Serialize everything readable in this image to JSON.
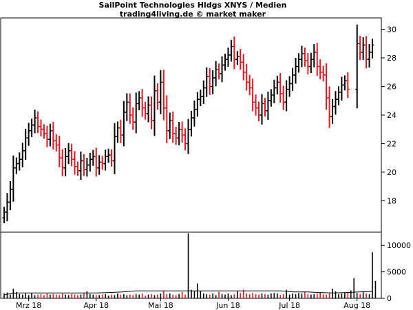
{
  "header": {
    "title": "SailPoint Technologies Hldgs XNYS / Medien",
    "subtitle": "trading4living.de © market maker"
  },
  "chart_data": {
    "type": "ohlc-bar",
    "colors": {
      "up": "#000000",
      "down": "#e8141e",
      "axis": "#000000",
      "avg": "#000000"
    },
    "price_axis": {
      "ylim": [
        15.8,
        30.8
      ],
      "ticks": [
        18,
        20,
        22,
        24,
        26,
        28,
        30
      ]
    },
    "volume_axis": {
      "ylim": [
        0,
        12500
      ],
      "ticks": [
        0,
        5000,
        10000
      ]
    },
    "x_labels": [
      "Mrz 18",
      "Apr 18",
      "Mai 18",
      "Jun 18",
      "Jul 18",
      "Aug 18"
    ],
    "x_label_index": [
      8,
      30,
      51,
      73,
      93,
      115
    ],
    "closes": [
      17.2,
      17.9,
      18.8,
      20.3,
      20.6,
      20.9,
      21.5,
      22.4,
      22.9,
      23.3,
      23.8,
      23.2,
      23.0,
      22.7,
      22.3,
      22.9,
      22.2,
      21.9,
      21.0,
      20.3,
      21.1,
      21.5,
      20.9,
      20.4,
      20.1,
      20.8,
      20.2,
      20.5,
      20.9,
      21.1,
      20.3,
      20.7,
      20.6,
      21.1,
      21.2,
      20.8,
      22.5,
      23.1,
      22.6,
      24.2,
      24.9,
      24.0,
      23.5,
      24.8,
      25.2,
      24.5,
      24.1,
      24.7,
      23.6,
      25.7,
      24.9,
      26.3,
      24.5,
      22.9,
      23.6,
      22.7,
      22.4,
      23.0,
      22.6,
      22.0,
      23.0,
      23.8,
      24.4,
      25.1,
      25.3,
      25.9,
      26.7,
      26.0,
      26.6,
      27.2,
      26.9,
      27.5,
      27.9,
      28.2,
      28.8,
      27.9,
      28.1,
      27.7,
      27.0,
      26.3,
      25.9,
      24.9,
      24.5,
      24.0,
      24.8,
      24.3,
      25.0,
      25.4,
      25.9,
      26.3,
      25.5,
      24.9,
      25.8,
      26.2,
      26.8,
      27.4,
      27.9,
      28.3,
      27.8,
      27.4,
      27.9,
      28.4,
      27.4,
      27.0,
      26.8,
      25.2,
      23.9,
      24.6,
      25.1,
      25.6,
      26.1,
      26.4,
      25.8,
      null,
      null,
      29.0,
      28.4,
      28.9,
      27.9,
      28.4,
      28.9
    ],
    "volumes": [
      900,
      1100,
      700,
      1800,
      1200,
      800,
      700,
      900,
      600,
      1000,
      600,
      700,
      800,
      600,
      900,
      700,
      800,
      700,
      600,
      900,
      700,
      600,
      800,
      700,
      600,
      700,
      900,
      1300,
      800,
      700,
      600,
      600,
      700,
      800,
      500,
      700,
      600,
      900,
      700,
      800,
      600,
      700,
      600,
      800,
      700,
      900,
      500,
      700,
      800,
      600,
      700,
      900,
      1500,
      800,
      900,
      700,
      600,
      800,
      1200,
      700,
      12300,
      1600,
      1300,
      2800,
      1400,
      900,
      800,
      700,
      900,
      600,
      1200,
      800,
      700,
      900,
      600,
      800,
      1300,
      1000,
      1600,
      900,
      800,
      1000,
      800,
      700,
      900,
      800,
      700,
      900,
      1000,
      900,
      600,
      800,
      1600,
      700,
      900,
      800,
      1000,
      900,
      1200,
      800,
      700,
      800,
      900,
      1100,
      800,
      700,
      900,
      1800,
      1300,
      800,
      900,
      1000,
      1100,
      1500,
      3800,
      1000,
      800,
      1200,
      900,
      800,
      8700,
      3300
    ],
    "volume_avg": [
      700,
      1000,
      1000,
      1000,
      1000,
      1000,
      1000,
      1000,
      1100,
      1200,
      1400,
      1400,
      1400,
      1400,
      1400,
      1400,
      1400,
      1400,
      1400,
      1400,
      1400,
      1400,
      1200,
      1200,
      1100,
      1000,
      1100,
      1200,
      1300
    ]
  }
}
